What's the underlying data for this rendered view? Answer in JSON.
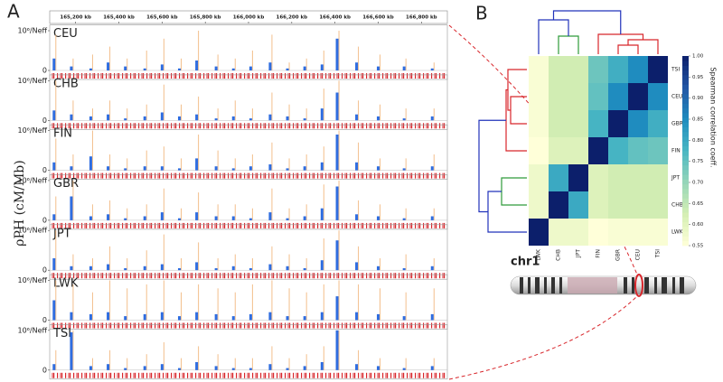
{
  "panel_labels": [
    "A",
    "B"
  ],
  "ideogram": {
    "label": "chr1"
  },
  "chart_data": [
    {
      "type": "bar",
      "y_label": "ρPH (cM/Mb)",
      "color": "#2f6de0",
      "peak_color": "#f3bf8c",
      "xlim": [
        165080,
        166920
      ],
      "xticks": [
        {
          "value": 165200,
          "label": "165,200 kb"
        },
        {
          "value": 165400,
          "label": "165,400 kb"
        },
        {
          "value": 165600,
          "label": "165,600 kb"
        },
        {
          "value": 165800,
          "label": "165,800 kb"
        },
        {
          "value": 166000,
          "label": "166,000 kb"
        },
        {
          "value": 166200,
          "label": "166,200 kb"
        },
        {
          "value": 166400,
          "label": "166,400 kb"
        },
        {
          "value": 166600,
          "label": "166,600 kb"
        },
        {
          "value": 166800,
          "label": "166,800 kb"
        }
      ],
      "ylim": [
        0,
        1.1
      ],
      "yticks": [
        0,
        {
          "value": 1,
          "label": "10⁶/Neff"
        }
      ],
      "x": [
        165100,
        165180,
        165270,
        165350,
        165430,
        165520,
        165600,
        165680,
        165760,
        165850,
        165930,
        166010,
        166100,
        166180,
        166260,
        166340,
        166410,
        166500,
        166600,
        166720,
        166850
      ],
      "panels": [
        {
          "name": "CEU",
          "values": [
            0.3,
            0.1,
            0.05,
            0.2,
            0.1,
            0.05,
            0.15,
            0.05,
            0.25,
            0.1,
            0.05,
            0.1,
            0.2,
            0.05,
            0.1,
            0.15,
            0.8,
            0.2,
            0.1,
            0.1,
            0.05
          ],
          "peaks": [
            0.9,
            0.3,
            0.4,
            0.6,
            0.3,
            0.5,
            0.8,
            0.3,
            1.0,
            0.4,
            0.3,
            0.5,
            0.9,
            0.2,
            0.3,
            0.5,
            1.0,
            0.6,
            0.4,
            0.3,
            0.2
          ]
        },
        {
          "name": "CHB",
          "values": [
            0.25,
            0.15,
            0.1,
            0.15,
            0.05,
            0.1,
            0.2,
            0.1,
            0.15,
            0.05,
            0.1,
            0.05,
            0.15,
            0.1,
            0.05,
            0.3,
            0.7,
            0.15,
            0.1,
            0.05,
            0.1
          ],
          "peaks": [
            1.0,
            0.5,
            0.3,
            0.5,
            0.3,
            0.4,
            0.9,
            0.4,
            0.6,
            0.3,
            0.5,
            0.3,
            0.7,
            0.4,
            0.3,
            0.8,
            1.0,
            0.5,
            0.4,
            0.3,
            0.3
          ]
        },
        {
          "name": "FIN",
          "values": [
            0.2,
            0.1,
            0.35,
            0.1,
            0.05,
            0.1,
            0.1,
            0.05,
            0.3,
            0.1,
            0.05,
            0.1,
            0.15,
            0.05,
            0.1,
            0.2,
            0.9,
            0.2,
            0.1,
            0.05,
            0.1
          ],
          "peaks": [
            0.8,
            0.4,
            1.0,
            0.4,
            0.3,
            0.5,
            0.6,
            0.3,
            0.9,
            0.5,
            0.3,
            0.4,
            0.7,
            0.3,
            0.4,
            0.6,
            1.0,
            0.7,
            0.3,
            0.3,
            0.4
          ]
        },
        {
          "name": "GBR",
          "values": [
            0.15,
            0.6,
            0.1,
            0.15,
            0.05,
            0.1,
            0.2,
            0.05,
            0.2,
            0.1,
            0.1,
            0.05,
            0.2,
            0.05,
            0.1,
            0.3,
            0.85,
            0.15,
            0.1,
            0.05,
            0.1
          ],
          "peaks": [
            0.6,
            1.0,
            0.4,
            0.5,
            0.3,
            0.4,
            0.8,
            0.3,
            0.7,
            0.4,
            0.4,
            0.3,
            0.8,
            0.3,
            0.4,
            0.9,
            1.0,
            0.5,
            0.4,
            0.3,
            0.3
          ]
        },
        {
          "name": "JPT",
          "values": [
            0.3,
            0.1,
            0.1,
            0.15,
            0.05,
            0.1,
            0.15,
            0.05,
            0.2,
            0.05,
            0.1,
            0.05,
            0.15,
            0.1,
            0.05,
            0.25,
            0.75,
            0.2,
            0.1,
            0.05,
            0.1
          ],
          "peaks": [
            1.0,
            0.4,
            0.3,
            0.6,
            0.3,
            0.5,
            0.9,
            0.3,
            0.7,
            0.3,
            0.4,
            0.3,
            0.6,
            0.4,
            0.3,
            0.8,
            1.0,
            0.6,
            0.3,
            0.4,
            0.3
          ]
        },
        {
          "name": "LWK",
          "values": [
            0.5,
            0.2,
            0.15,
            0.2,
            0.1,
            0.15,
            0.2,
            0.1,
            0.2,
            0.15,
            0.1,
            0.15,
            0.2,
            0.1,
            0.1,
            0.2,
            0.6,
            0.2,
            0.15,
            0.1,
            0.15
          ],
          "peaks": [
            1.0,
            0.9,
            0.7,
            1.0,
            0.8,
            0.9,
            1.0,
            0.7,
            0.9,
            0.8,
            0.7,
            0.9,
            1.0,
            0.8,
            0.7,
            0.9,
            1.0,
            0.9,
            0.8,
            0.7,
            0.8
          ]
        },
        {
          "name": "TSI",
          "values": [
            0.15,
            0.95,
            0.1,
            0.15,
            0.05,
            0.1,
            0.15,
            0.05,
            0.2,
            0.1,
            0.05,
            0.05,
            0.15,
            0.05,
            0.1,
            0.2,
            1.0,
            0.15,
            0.1,
            0.05,
            0.1
          ],
          "peaks": [
            0.5,
            1.0,
            0.3,
            0.5,
            0.3,
            0.4,
            0.7,
            0.3,
            0.6,
            0.4,
            0.3,
            0.3,
            0.6,
            0.3,
            0.4,
            0.6,
            1.0,
            0.5,
            0.3,
            0.3,
            0.3
          ]
        }
      ]
    },
    {
      "type": "heatmap",
      "colorbar_label": "Spearman correlation coeff.",
      "rows": [
        "TSI",
        "CEU",
        "GBR",
        "FIN",
        "JPT",
        "CHB",
        "LWK"
      ],
      "columns": [
        "LWK",
        "CHB",
        "JPT",
        "FIN",
        "GBR",
        "CEU",
        "TSI"
      ],
      "values": [
        [
          0.56,
          0.63,
          0.63,
          0.74,
          0.79,
          0.85,
          1
        ],
        [
          0.56,
          0.63,
          0.63,
          0.75,
          0.85,
          1,
          0.85
        ],
        [
          0.56,
          0.63,
          0.63,
          0.78,
          1,
          0.85,
          0.79
        ],
        [
          0.55,
          0.61,
          0.61,
          1,
          0.78,
          0.75,
          0.74
        ],
        [
          0.58,
          0.8,
          1,
          0.61,
          0.63,
          0.63,
          0.63
        ],
        [
          0.58,
          1,
          0.8,
          0.61,
          0.63,
          0.63,
          0.63
        ],
        [
          1,
          0.58,
          0.58,
          0.55,
          0.56,
          0.56,
          0.56
        ]
      ],
      "colormap": [
        "#ffffd9",
        "#d5efb3",
        "#97d6b9",
        "#49b7c3",
        "#1f8cbf",
        "#2256a5",
        "#0c1f6b"
      ],
      "zlim": [
        0.55,
        1
      ],
      "zticks": [
        {
          "value": 1,
          "label": "1.00"
        },
        0.95,
        {
          "value": 0.9,
          "label": "0.90"
        },
        0.85,
        {
          "value": 0.8,
          "label": "0.80"
        },
        0.75,
        {
          "value": 0.7,
          "label": "0.70"
        },
        0.65,
        {
          "value": 0.6,
          "label": "0.60"
        },
        0.55
      ]
    }
  ]
}
